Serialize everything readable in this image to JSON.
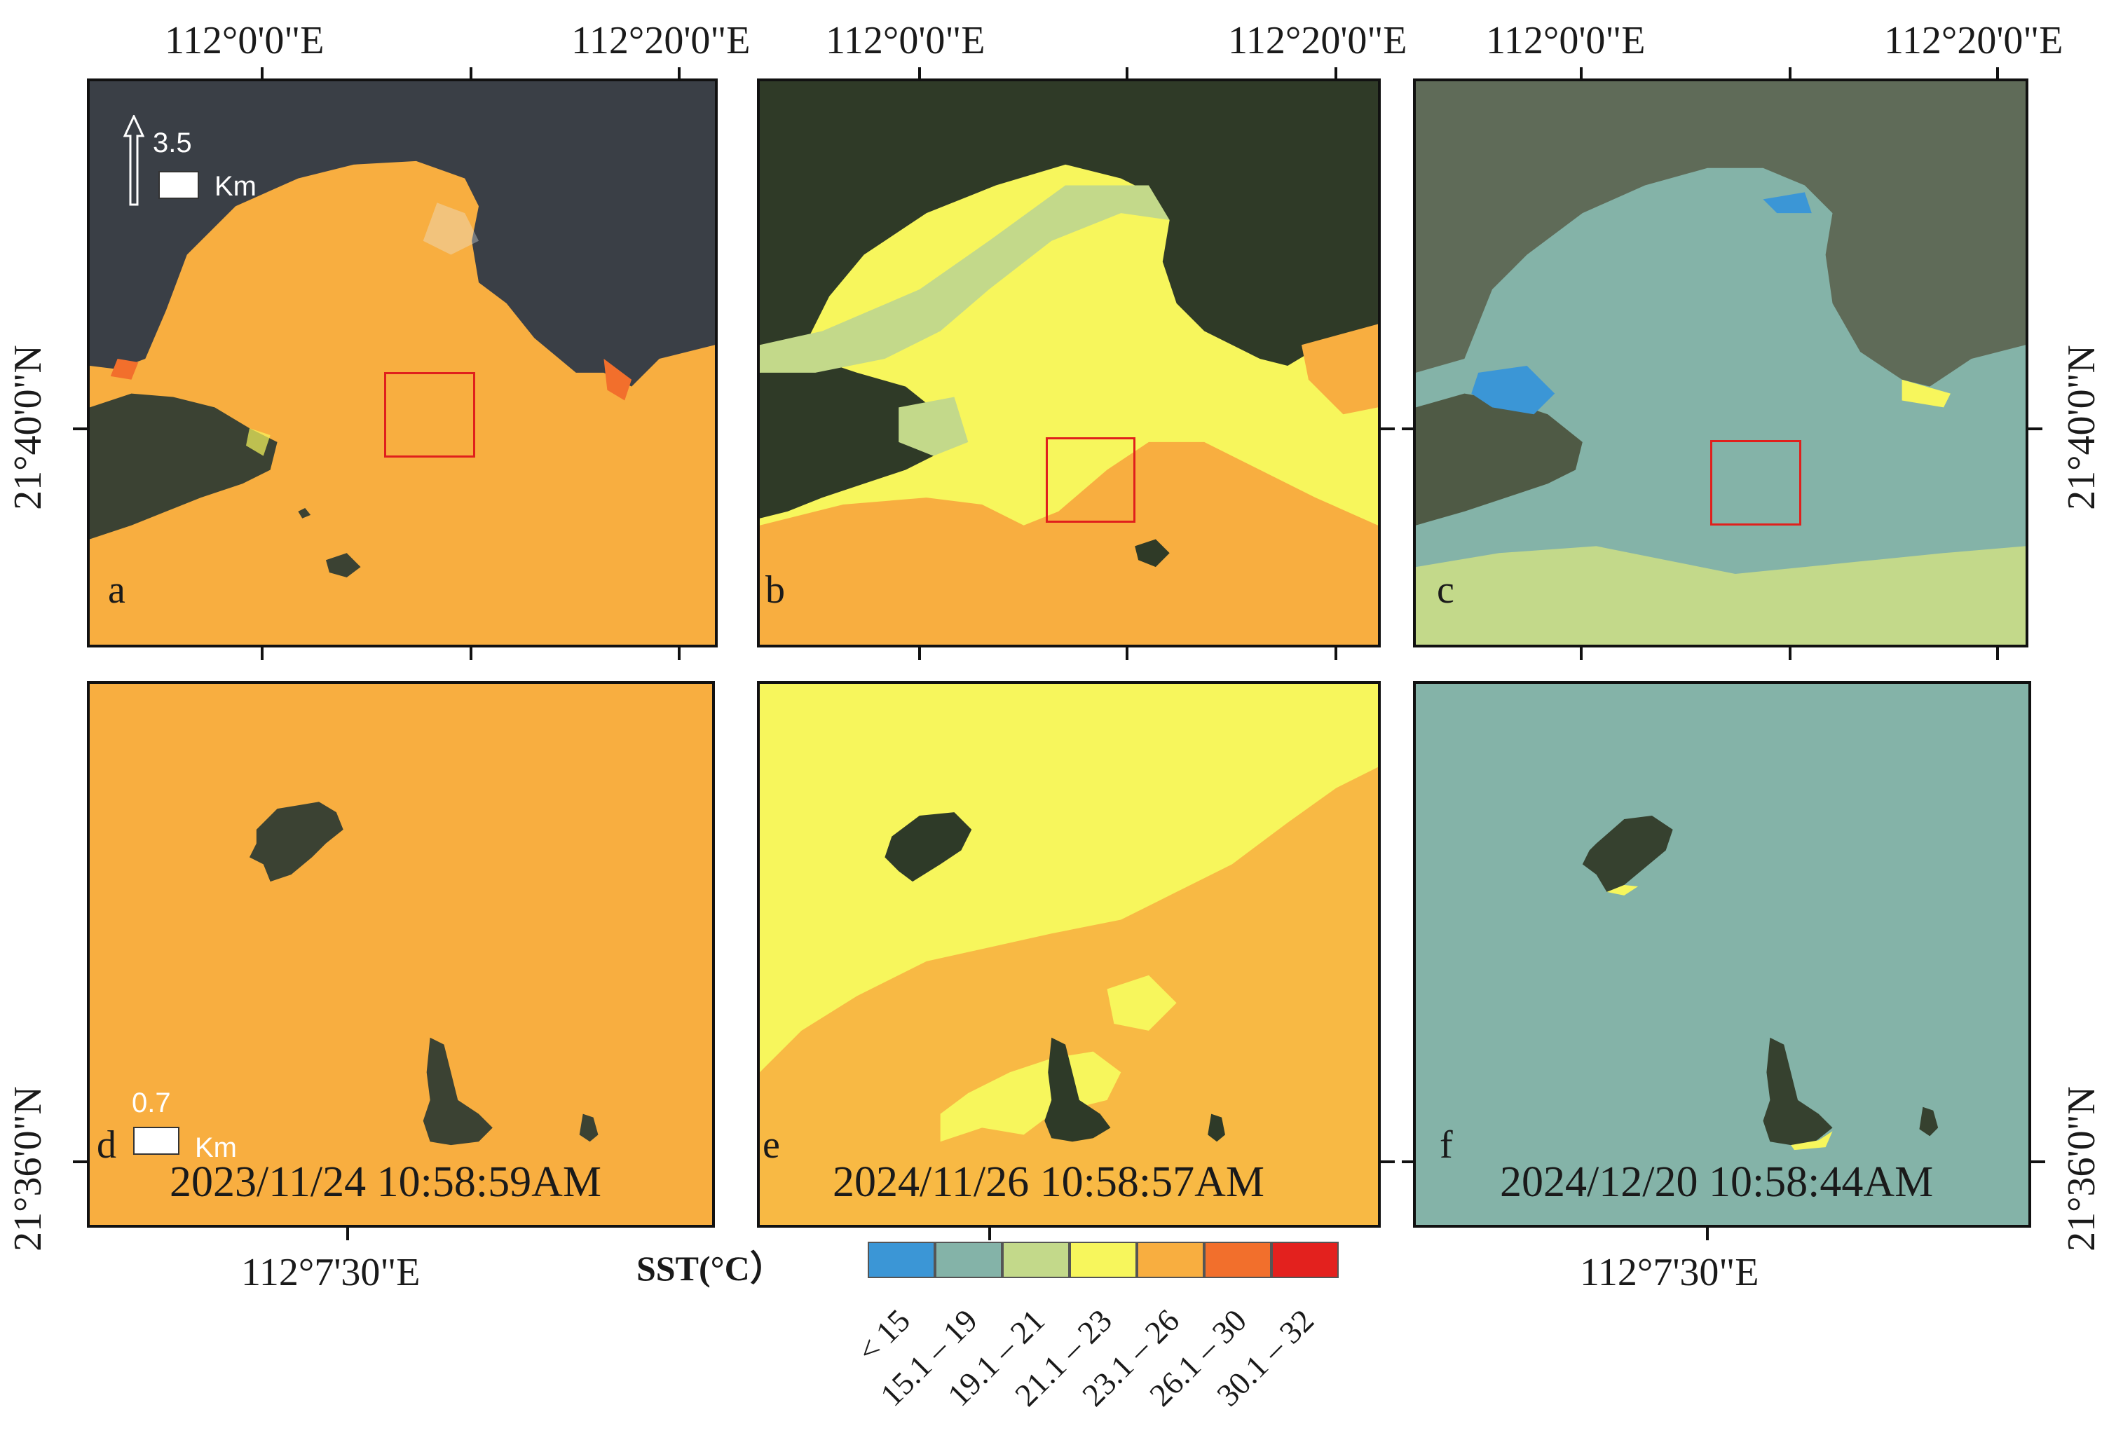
{
  "top_lon_labels": [
    "112°0'0\"E",
    "112°20'0\"E"
  ],
  "bottom_lon_label": "112°7'30\"E",
  "lat_label_top": "21°40'0\"N",
  "lat_label_bottom": "21°36'0\"N",
  "panel_letters": [
    "a",
    "b",
    "c",
    "d",
    "e",
    "f"
  ],
  "dates": [
    "2023/11/24 10:58:59AM",
    "2024/11/26 10:58:57AM",
    "2024/12/20 10:58:44AM"
  ],
  "scale_top": {
    "value": "3.5",
    "unit": "Km"
  },
  "scale_bottom": {
    "value": "0.7",
    "unit": "Km"
  },
  "legend": {
    "title": "SST(°C）",
    "classes": [
      {
        "label": "< 15",
        "color": "#3b96d6"
      },
      {
        "label": "15.1 – 19",
        "color": "#84b3a8"
      },
      {
        "label": "19.1 – 21",
        "color": "#c3d98a"
      },
      {
        "label": "21.1 – 23",
        "color": "#f7f65c"
      },
      {
        "label": "23.1 – 26",
        "color": "#f8ae40"
      },
      {
        "label": "26.1 – 30",
        "color": "#f26f2c"
      },
      {
        "label": "30.1 – 32",
        "color": "#e3211e"
      }
    ]
  },
  "colors": {
    "land": "#3b4233",
    "land_c": "#5f6b58",
    "frame": "#111111",
    "study_box": "#e0201c"
  }
}
